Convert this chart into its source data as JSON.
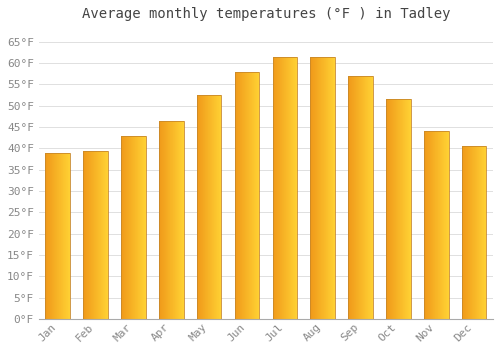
{
  "title": "Average monthly temperatures (°F ) in Tadley",
  "months": [
    "Jan",
    "Feb",
    "Mar",
    "Apr",
    "May",
    "Jun",
    "Jul",
    "Aug",
    "Sep",
    "Oct",
    "Nov",
    "Dec"
  ],
  "values": [
    39.0,
    39.5,
    43.0,
    46.5,
    52.5,
    58.0,
    61.5,
    61.5,
    57.0,
    51.5,
    44.0,
    40.5
  ],
  "bar_color_left": "#F0A030",
  "bar_color_right": "#FFD040",
  "bar_edge_color": "#C8882A",
  "background_color": "#FFFFFF",
  "grid_color": "#E0E0E0",
  "ylim": [
    0,
    68
  ],
  "yticks": [
    0,
    5,
    10,
    15,
    20,
    25,
    30,
    35,
    40,
    45,
    50,
    55,
    60,
    65
  ],
  "title_fontsize": 10,
  "tick_fontsize": 8,
  "font_family": "monospace"
}
